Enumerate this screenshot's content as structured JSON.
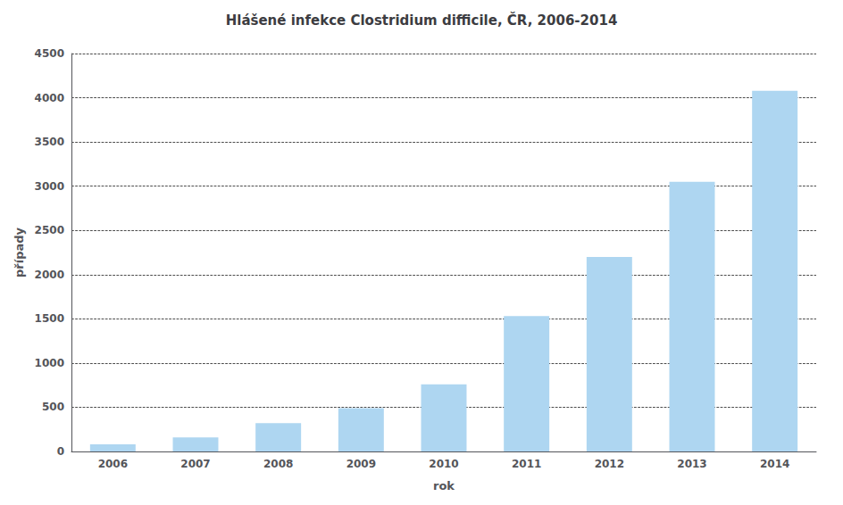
{
  "chart_data": {
    "type": "bar",
    "title": "Hlášené infekce Clostridium difficile, ČR, 2006-2014",
    "categories": [
      "2006",
      "2007",
      "2008",
      "2009",
      "2010",
      "2011",
      "2012",
      "2013",
      "2014"
    ],
    "values": [
      80,
      160,
      320,
      490,
      760,
      1530,
      2200,
      3050,
      4080
    ],
    "color": "#aed6f1",
    "xlabel": "rok",
    "ylabel": "případy",
    "ylim": [
      0,
      4500
    ],
    "yticks": [
      0,
      500,
      1000,
      1500,
      2000,
      2500,
      3000,
      3500,
      4000,
      4500
    ],
    "grid": true
  }
}
